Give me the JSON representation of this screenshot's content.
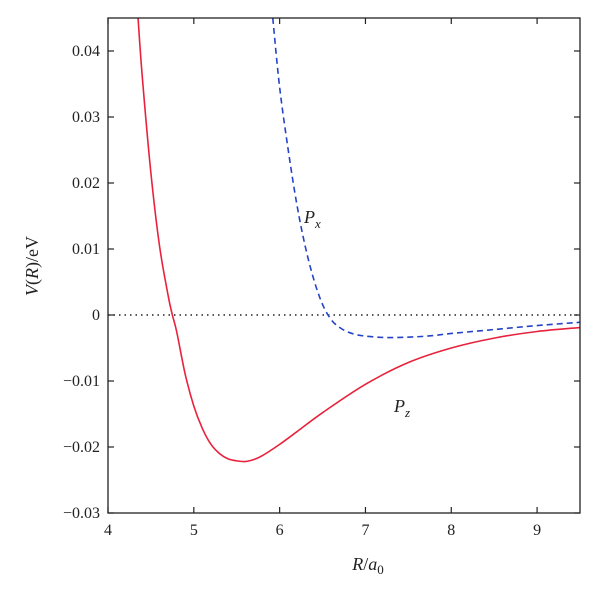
{
  "chart_data": {
    "type": "line",
    "title": "",
    "xlabel": {
      "main": "R",
      "sep": "/",
      "sym": "a",
      "sub": "0"
    },
    "ylabel": {
      "a": "V",
      "b": "(",
      "c": "R",
      "d": ")/eV"
    },
    "xlim": [
      4,
      9.5
    ],
    "ylim": [
      -0.03,
      0.045
    ],
    "xticks": [
      4,
      5,
      6,
      7,
      8,
      9
    ],
    "yticks": [
      -0.03,
      -0.02,
      -0.01,
      0,
      0.01,
      0.02,
      0.03,
      0.04
    ],
    "xtick_labels": [
      "4",
      "5",
      "6",
      "7",
      "8",
      "9"
    ],
    "ytick_labels": [
      "−0.03",
      "−0.02",
      "−0.01",
      "0",
      "0.01",
      "0.02",
      "0.03",
      "0.04"
    ],
    "grid": false,
    "reference_line": {
      "y": 0,
      "style": "dotted",
      "color": "#222222"
    },
    "series": [
      {
        "name": "P",
        "name_sub": "z",
        "style": "solid",
        "color": "#e8223c",
        "x": [
          4.35,
          4.4,
          4.5,
          4.6,
          4.7,
          4.75,
          4.8,
          4.9,
          5.0,
          5.1,
          5.2,
          5.3,
          5.4,
          5.5,
          5.6,
          5.7,
          5.8,
          6.0,
          6.2,
          6.5,
          7.0,
          7.5,
          8.0,
          8.5,
          9.0,
          9.5
        ],
        "y": [
          0.045,
          0.036,
          0.0215,
          0.0105,
          0.003,
          0.0,
          -0.0025,
          -0.009,
          -0.0138,
          -0.0172,
          -0.0196,
          -0.021,
          -0.0218,
          -0.0221,
          -0.0222,
          -0.0219,
          -0.0213,
          -0.0196,
          -0.0177,
          -0.0148,
          -0.0105,
          -0.0072,
          -0.005,
          -0.0035,
          -0.0025,
          -0.0019
        ]
      },
      {
        "name": "P",
        "name_sub": "x",
        "style": "dashed",
        "color": "#2444c8",
        "x": [
          5.92,
          6.0,
          6.1,
          6.2,
          6.3,
          6.4,
          6.5,
          6.6,
          6.7,
          6.8,
          6.9,
          7.0,
          7.2,
          7.4,
          7.6,
          7.8,
          8.0,
          8.5,
          9.0,
          9.5
        ],
        "y": [
          0.045,
          0.0345,
          0.025,
          0.0168,
          0.0103,
          0.0053,
          0.0016,
          -0.0007,
          -0.0019,
          -0.0026,
          -0.003,
          -0.0032,
          -0.0034,
          -0.0034,
          -0.0033,
          -0.0031,
          -0.0028,
          -0.0022,
          -0.0016,
          -0.0011
        ]
      }
    ]
  }
}
